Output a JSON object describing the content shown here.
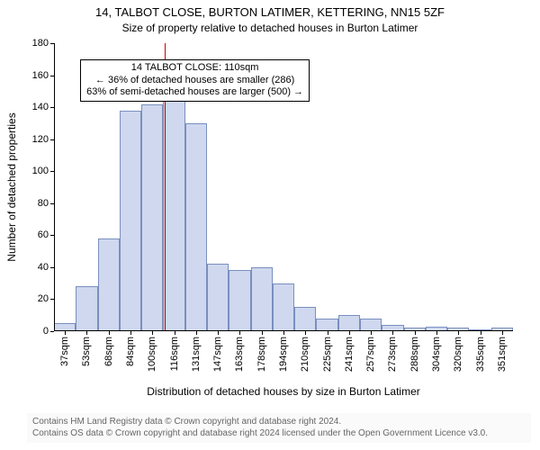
{
  "title_main": "14, TALBOT CLOSE, BURTON LATIMER, KETTERING, NN15 5ZF",
  "title_sub": "Size of property relative to detached houses in Burton Latimer",
  "y_axis_label": "Number of detached properties",
  "x_axis_label": "Distribution of detached houses by size in Burton Latimer",
  "footer_line1": "Contains HM Land Registry data © Crown copyright and database right 2024.",
  "footer_line2": "Contains OS data © Crown copyright and database right 2024 licensed under the Open Government Licence v3.0.",
  "annotation": {
    "line1": "14 TALBOT CLOSE: 110sqm",
    "line2": "← 36% of detached houses are smaller (286)",
    "line3": "63% of semi-detached houses are larger (500) →",
    "box_top_value": 170,
    "box_left_bar_index": 1.2
  },
  "chart": {
    "type": "histogram",
    "ylim": [
      0,
      180
    ],
    "ytick_step": 20,
    "bar_fill": "#cfd8ee",
    "bar_border": "#7a8fbf",
    "vline_value": 110,
    "vline_color": "#cc0000",
    "axis_color": "#000000",
    "background": "#ffffff",
    "title_fontsize": 13,
    "subtitle_fontsize": 12,
    "label_fontsize": 12,
    "tick_fontsize": 11,
    "x_categories": [
      "37sqm",
      "53sqm",
      "68sqm",
      "84sqm",
      "100sqm",
      "116sqm",
      "131sqm",
      "147sqm",
      "163sqm",
      "178sqm",
      "194sqm",
      "210sqm",
      "225sqm",
      "241sqm",
      "257sqm",
      "273sqm",
      "288sqm",
      "304sqm",
      "320sqm",
      "335sqm",
      "351sqm"
    ],
    "values": [
      5,
      28,
      58,
      138,
      142,
      147,
      130,
      42,
      38,
      40,
      30,
      15,
      8,
      10,
      8,
      4,
      2,
      3,
      2,
      1,
      2
    ]
  }
}
